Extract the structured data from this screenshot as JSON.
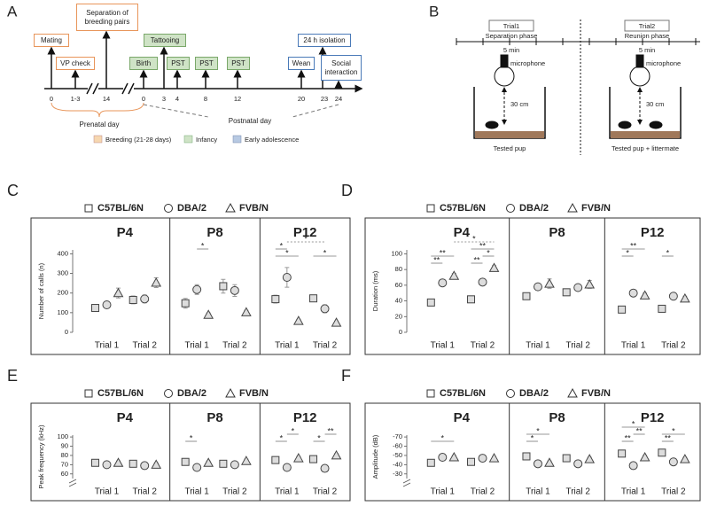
{
  "panel_a": {
    "label": "A",
    "events": [
      "Mating",
      "VP check",
      "Separation of breeding pairs",
      "Birth",
      "Tattooing",
      "PST",
      "PST",
      "PST",
      "Wean",
      "24 h isolation",
      "Social interaction"
    ],
    "days": [
      "0",
      "1-3",
      "14",
      "0",
      "3",
      "4",
      "8",
      "12",
      "20",
      "23",
      "24"
    ],
    "periods": [
      "Prenatal day",
      "Postnatal day"
    ],
    "legend": [
      "Breeding (21-28 days)",
      "Infancy",
      "Early adolescence"
    ]
  },
  "panel_b": {
    "label": "B",
    "trials": [
      {
        "name": "Trial1",
        "phase": "Separation phase",
        "duration": "5 min",
        "device": "microphone",
        "distance": "30 cm",
        "subject": "Tested pup"
      },
      {
        "name": "Trial2",
        "phase": "Reunion phase",
        "duration": "5 min",
        "device": "microphone",
        "distance": "30 cm",
        "subject": "Tested pup + littermate"
      }
    ]
  },
  "chart_data": [
    {
      "type": "dot",
      "label": "C",
      "facets": [
        "P4",
        "P8",
        "P12"
      ],
      "categories": [
        "Trial 1",
        "Trial 2",
        "Trial 1",
        "Trial 2",
        "Trial 1",
        "Trial 2"
      ],
      "y_label": "Number of calls (n)",
      "ylim": [
        0,
        420
      ],
      "yticks": [
        0,
        100,
        200,
        300,
        400
      ],
      "series": [
        {
          "name": "C57BL/6N",
          "marker": "square",
          "color": "#444",
          "values": [
            124,
            165,
            148,
            235,
            169,
            173
          ],
          "errors": [
            15,
            20,
            25,
            35,
            20,
            15
          ]
        },
        {
          "name": "DBA/2",
          "marker": "circle",
          "color": "#444",
          "values": [
            140,
            170,
            218,
            213,
            280,
            120
          ],
          "errors": [
            15,
            20,
            25,
            30,
            50,
            20
          ]
        },
        {
          "name": "FVB/N",
          "marker": "triangle",
          "color": "#444",
          "values": [
            200,
            253,
            89,
            102,
            58,
            49
          ],
          "errors": [
            25,
            25,
            10,
            10,
            8,
            8
          ]
        }
      ],
      "annotations": [
        "*",
        "*",
        "*",
        "*",
        "*"
      ]
    },
    {
      "type": "dot",
      "label": "D",
      "facets": [
        "P4",
        "P8",
        "P12"
      ],
      "categories": [
        "Trial 1",
        "Trial 2",
        "Trial 1",
        "Trial 2",
        "Trial 1",
        "Trial 2"
      ],
      "y_label": "Duration (ms)",
      "ylim": [
        0,
        105
      ],
      "yticks": [
        0,
        20,
        40,
        60,
        80,
        100
      ],
      "series": [
        {
          "name": "C57BL/6N",
          "marker": "square",
          "color": "#444",
          "values": [
            38,
            42,
            46,
            51,
            29,
            30
          ],
          "errors": [
            3,
            3,
            3,
            4,
            3,
            3
          ]
        },
        {
          "name": "DBA/2",
          "marker": "circle",
          "color": "#444",
          "values": [
            63,
            64,
            58,
            57,
            50,
            46
          ],
          "errors": [
            3,
            3,
            3,
            3,
            4,
            3
          ]
        },
        {
          "name": "FVB/N",
          "marker": "triangle",
          "color": "#444",
          "values": [
            72,
            82,
            62,
            61,
            47,
            43
          ],
          "errors": [
            3,
            3,
            6,
            5,
            3,
            3
          ]
        }
      ],
      "annotations": [
        "**",
        "**",
        "*",
        "**",
        "**",
        "*",
        "**",
        "*",
        "*"
      ]
    },
    {
      "type": "dot",
      "label": "E",
      "facets": [
        "P4",
        "P8",
        "P12"
      ],
      "categories": [
        "Trial 1",
        "Trial 2",
        "Trial 1",
        "Trial 2",
        "Trial 1",
        "Trial 2"
      ],
      "y_label": "Peak frequency (kHz)",
      "ylim": [
        55,
        102
      ],
      "yticks": [
        60,
        70,
        80,
        90,
        100
      ],
      "axis_break": true,
      "series": [
        {
          "name": "C57BL/6N",
          "marker": "square",
          "color": "#444",
          "values": [
            72,
            71,
            73,
            71,
            75,
            76
          ],
          "errors": [
            2,
            2,
            2,
            2,
            2,
            2
          ]
        },
        {
          "name": "DBA/2",
          "marker": "circle",
          "color": "#444",
          "values": [
            70,
            69,
            67,
            70,
            67,
            66
          ],
          "errors": [
            2,
            2,
            2,
            2,
            2,
            2
          ]
        },
        {
          "name": "FVB/N",
          "marker": "triangle",
          "color": "#444",
          "values": [
            72,
            70,
            72,
            74,
            77,
            80
          ],
          "errors": [
            2,
            2,
            2,
            2,
            2,
            2
          ]
        }
      ],
      "annotations": [
        "*",
        "*",
        "*",
        "*",
        "**"
      ]
    },
    {
      "type": "dot",
      "label": "F",
      "facets": [
        "P4",
        "P8",
        "P12"
      ],
      "categories": [
        "Trial 1",
        "Trial 2",
        "Trial 1",
        "Trial 2",
        "Trial 1",
        "Trial 2"
      ],
      "y_label": "Amplitude (dB)",
      "ylim": [
        -25,
        -72
      ],
      "yticks": [
        -70,
        -60,
        -50,
        -40,
        -30
      ],
      "axis_break": true,
      "series": [
        {
          "name": "C57BL/6N",
          "marker": "square",
          "color": "#444",
          "values": [
            -42,
            -43,
            -49,
            -47,
            -52,
            -53
          ],
          "errors": [
            2,
            2,
            2,
            2,
            2,
            2
          ]
        },
        {
          "name": "DBA/2",
          "marker": "circle",
          "color": "#444",
          "values": [
            -48,
            -47,
            -41,
            -41,
            -39,
            -43
          ],
          "errors": [
            2,
            2,
            2,
            2,
            2,
            2
          ]
        },
        {
          "name": "FVB/N",
          "marker": "triangle",
          "color": "#444",
          "values": [
            -48,
            -47,
            -42,
            -46,
            -48,
            -46
          ],
          "errors": [
            2,
            2,
            2,
            2,
            2,
            2
          ]
        }
      ],
      "annotations": [
        "*",
        "*",
        "*",
        "*",
        "**",
        "**",
        "*",
        "**"
      ]
    }
  ]
}
